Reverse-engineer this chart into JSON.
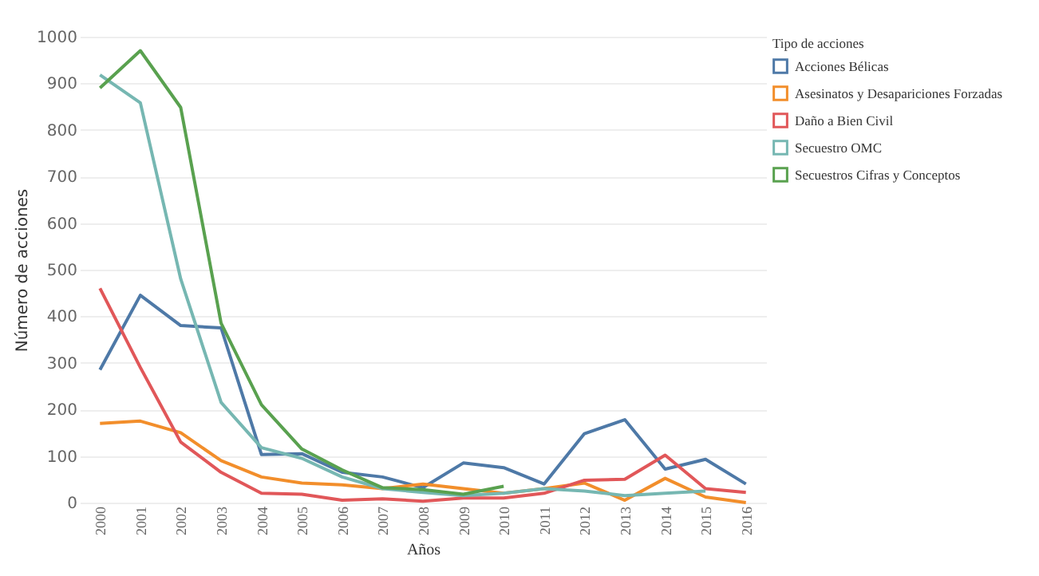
{
  "chart_data": {
    "type": "line",
    "xlabel": "Años",
    "ylabel": "Número de acciones",
    "legend_title": "Tipo de acciones",
    "categories": [
      "2000",
      "2001",
      "2002",
      "2003",
      "2004",
      "2005",
      "2006",
      "2007",
      "2008",
      "2009",
      "2010",
      "2011",
      "2012",
      "2013",
      "2014",
      "2015",
      "2016"
    ],
    "series": [
      {
        "name": "Acciones Bélicas",
        "color": "#4e79a7",
        "values": [
          285,
          445,
          380,
          375,
          103,
          105,
          65,
          55,
          32,
          85,
          75,
          40,
          148,
          178,
          72,
          93,
          40
        ]
      },
      {
        "name": "Asesinatos y Desapariciones Forzadas",
        "color": "#f28e2b",
        "values": [
          170,
          175,
          150,
          90,
          55,
          42,
          38,
          30,
          40,
          30,
          20,
          30,
          42,
          5,
          52,
          12,
          0
        ]
      },
      {
        "name": "Daño a Bien Civil",
        "color": "#e15759",
        "values": [
          460,
          290,
          130,
          65,
          20,
          18,
          5,
          8,
          3,
          10,
          10,
          20,
          48,
          50,
          102,
          30,
          22
        ]
      },
      {
        "name": "Secuestro OMC",
        "color": "#76b7b2",
        "values": [
          918,
          858,
          480,
          215,
          118,
          95,
          55,
          30,
          22,
          15,
          20,
          30,
          25,
          15,
          20,
          25,
          null
        ]
      },
      {
        "name": "Secuestros Cifras y Conceptos",
        "color": "#59a14f",
        "values": [
          890,
          970,
          848,
          385,
          210,
          115,
          70,
          32,
          28,
          18,
          35,
          null,
          null,
          null,
          null,
          null,
          null
        ]
      }
    ],
    "ylim": [
      0,
      1000
    ],
    "yticks": [
      0,
      100,
      200,
      300,
      400,
      500,
      600,
      700,
      800,
      900,
      1000
    ],
    "grid": "y",
    "legend": "top right",
    "marker": "none",
    "line_style": "solid"
  }
}
